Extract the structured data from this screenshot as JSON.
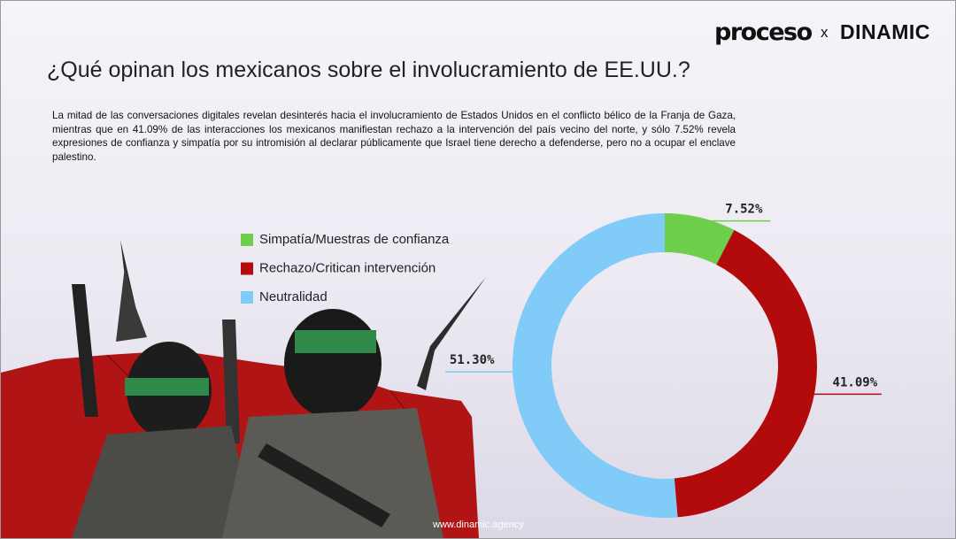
{
  "header": {
    "brand": "proceso",
    "separator": "x",
    "partner": "DINAMIC"
  },
  "chart_data": {
    "type": "donut",
    "title": "¿Qué opinan los mexicanos sobre el involucramiento de EE.UU.?",
    "subtitle": "La mitad de las conversaciones digitales revelan desinterés hacia el involucramiento de Estados Unidos en el conflicto bélico de la Franja de Gaza, mientras que en 41.09% de las interacciones los mexicanos manifiestan rechazo a la intervención del país vecino del norte, y sólo 7.52% revela expresiones de confianza y simpatía por su intromisión al declarar públicamente que Israel tiene derecho a defenderse, pero no a ocupar el enclave palestino.",
    "categories": [
      "Simpatía/Muestras de confianza",
      "Rechazo/Critican intervención",
      "Neutralidad"
    ],
    "values": [
      7.52,
      41.09,
      51.3
    ],
    "value_labels": [
      "7.52%",
      "41.09%",
      "51.30%"
    ],
    "colors": [
      "#6dcf4b",
      "#b30b0b",
      "#80cbf7"
    ]
  },
  "footer": "www.dinamic.agency"
}
